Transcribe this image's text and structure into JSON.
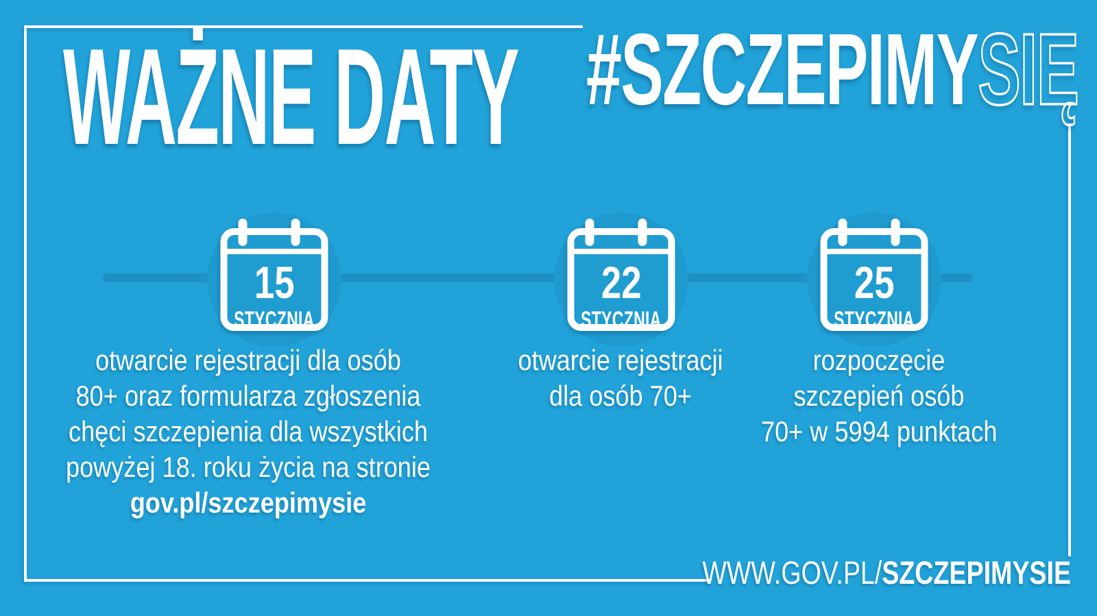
{
  "title": "WAŻNE DATY",
  "hashtag": {
    "solid": "#SZCZEPIMY",
    "outline": "SIĘ"
  },
  "colors": {
    "background": "#21A2D8",
    "circle": "#1F9ACE",
    "calendar_fill": "#1F9CD0",
    "timeline": "#1E90C4",
    "text": "#FFFFFF"
  },
  "timeline": {
    "events": [
      {
        "day": "15",
        "month": "STYCZNIA",
        "lines": [
          "otwarcie rejestracji dla osób",
          "80+ oraz formularza zgłoszenia",
          "chęci szczepienia dla wszystkich",
          "powyżej 18. roku życia na stronie"
        ],
        "bold_line": "gov.pl/szczepimysie"
      },
      {
        "day": "22",
        "month": "STYCZNIA",
        "lines": [
          "otwarcie rejestracji",
          "dla osób 70+"
        ]
      },
      {
        "day": "25",
        "month": "STYCZNIA",
        "lines": [
          "rozpoczęcie",
          "szczepień osób",
          "70+ w 5994 punktach"
        ]
      }
    ]
  },
  "footer": {
    "url_prefix": "WWW.GOV.PL/",
    "url_bold": "SZCZEPIMYSIE"
  }
}
